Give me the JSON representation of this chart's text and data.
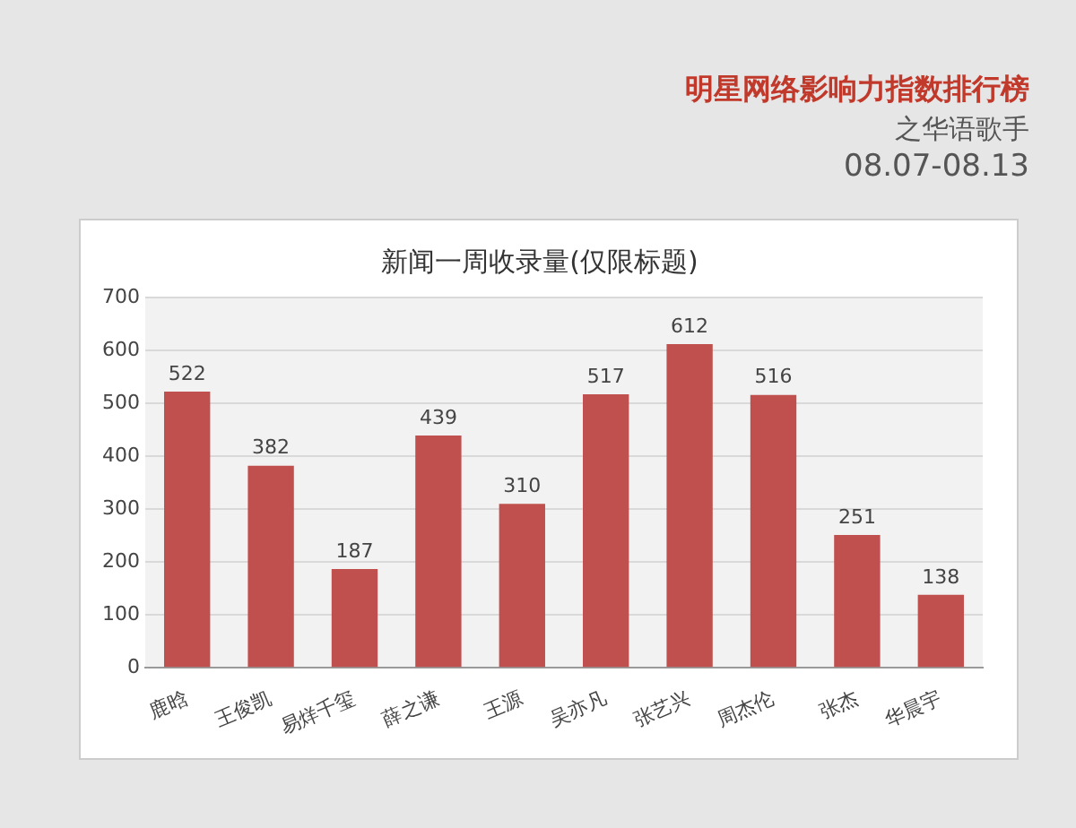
{
  "chart_data": {
    "type": "bar",
    "title": "新闻一周收录量(仅限标题)",
    "annotations": [
      "明星网络影响力指数排行榜",
      "之华语歌手",
      "08.07-08.13"
    ],
    "categories": [
      "鹿晗",
      "王俊凯",
      "易烊千玺",
      "薛之谦",
      "王源",
      "吴亦凡",
      "张艺兴",
      "周杰伦",
      "张杰",
      "华晨宇"
    ],
    "values": [
      522,
      382,
      187,
      439,
      310,
      517,
      612,
      516,
      251,
      138
    ],
    "color": "#c0504d",
    "ylim": [
      0,
      700
    ],
    "yticks": [
      0,
      100,
      200,
      300,
      400,
      500,
      600,
      700
    ],
    "grid": "y",
    "data_labels": true,
    "legend": false
  }
}
